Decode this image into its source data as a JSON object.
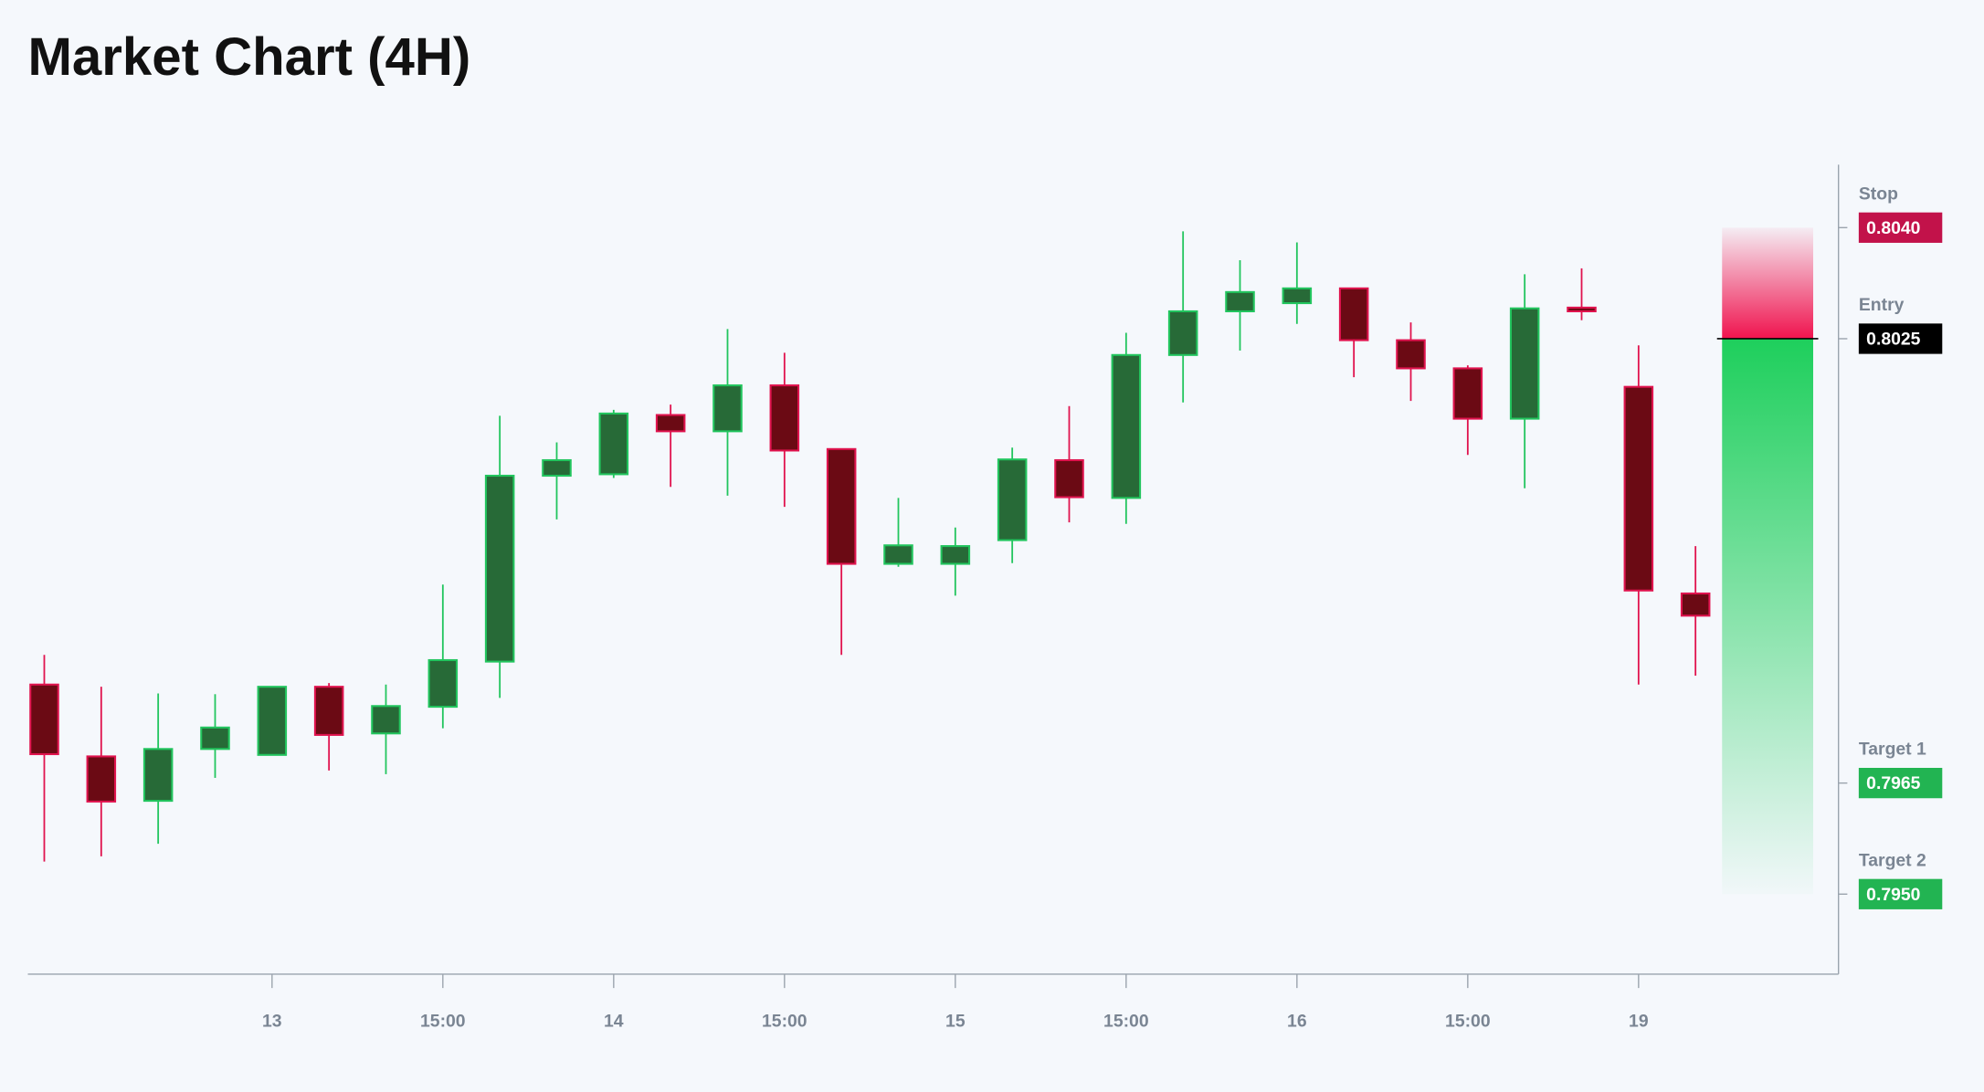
{
  "chart_data": {
    "type": "candlestick",
    "title": "Market Chart (4H)",
    "categories": [
      null,
      null,
      null,
      null,
      "13",
      null,
      null,
      "15:00",
      null,
      null,
      "14",
      null,
      null,
      "15:00",
      null,
      null,
      "15",
      null,
      null,
      "15:00",
      null,
      null,
      "16",
      null,
      null,
      "15:00",
      null,
      null,
      "19",
      null
    ],
    "open": [
      0.79783,
      0.79686,
      0.79626,
      0.79696,
      0.79688,
      0.7978,
      0.79717,
      0.79753,
      0.79814,
      0.80065,
      0.80067,
      0.80147,
      0.80125,
      0.80187,
      0.80101,
      0.79946,
      0.79946,
      0.79978,
      0.80086,
      0.80035,
      0.80228,
      0.80287,
      0.80298,
      0.80318,
      0.80248,
      0.8021,
      0.80142,
      0.80292,
      0.80185,
      0.79906
    ],
    "high": [
      0.79823,
      0.7978,
      0.79771,
      0.7977,
      0.7978,
      0.79785,
      0.79783,
      0.79918,
      0.80146,
      0.8011,
      0.80154,
      0.80161,
      0.80263,
      0.80231,
      0.80101,
      0.80035,
      0.79995,
      0.80103,
      0.80159,
      0.80258,
      0.80395,
      0.80356,
      0.8038,
      0.80318,
      0.80272,
      0.80214,
      0.80337,
      0.80345,
      0.80241,
      0.7997
    ],
    "low": [
      0.79544,
      0.79551,
      0.79568,
      0.79657,
      0.79688,
      0.79667,
      0.79662,
      0.79724,
      0.79765,
      0.80006,
      0.80062,
      0.8005,
      0.80038,
      0.80023,
      0.79823,
      0.79942,
      0.79903,
      0.79947,
      0.80002,
      0.8,
      0.80164,
      0.80234,
      0.8027,
      0.80198,
      0.80166,
      0.80093,
      0.80048,
      0.80275,
      0.79783,
      0.79795
    ],
    "close": [
      0.79689,
      0.79625,
      0.79696,
      0.79725,
      0.7978,
      0.79715,
      0.79754,
      0.79816,
      0.80065,
      0.80086,
      0.80149,
      0.80125,
      0.80187,
      0.80099,
      0.79946,
      0.79971,
      0.7997,
      0.80087,
      0.80036,
      0.80228,
      0.80287,
      0.80313,
      0.80318,
      0.80248,
      0.8021,
      0.80142,
      0.80291,
      0.80287,
      0.7991,
      0.79876
    ],
    "up_color": "#276a37",
    "up_edge": "#22c55e",
    "down_color": "#6b0a14",
    "down_edge": "#e0134e",
    "ylim": [
      0.79392,
      0.80485
    ],
    "levels": [
      {
        "name": "Stop",
        "value": 0.804,
        "label": "0.8040",
        "color": "#c2124a"
      },
      {
        "name": "Entry",
        "value": 0.8025,
        "label": "0.8025",
        "color": "#000000"
      },
      {
        "name": "Target 1",
        "value": 0.7965,
        "label": "0.7965",
        "color": "#22b452"
      },
      {
        "name": "Target 2",
        "value": 0.795,
        "label": "0.7950",
        "color": "#22b452"
      }
    ]
  }
}
